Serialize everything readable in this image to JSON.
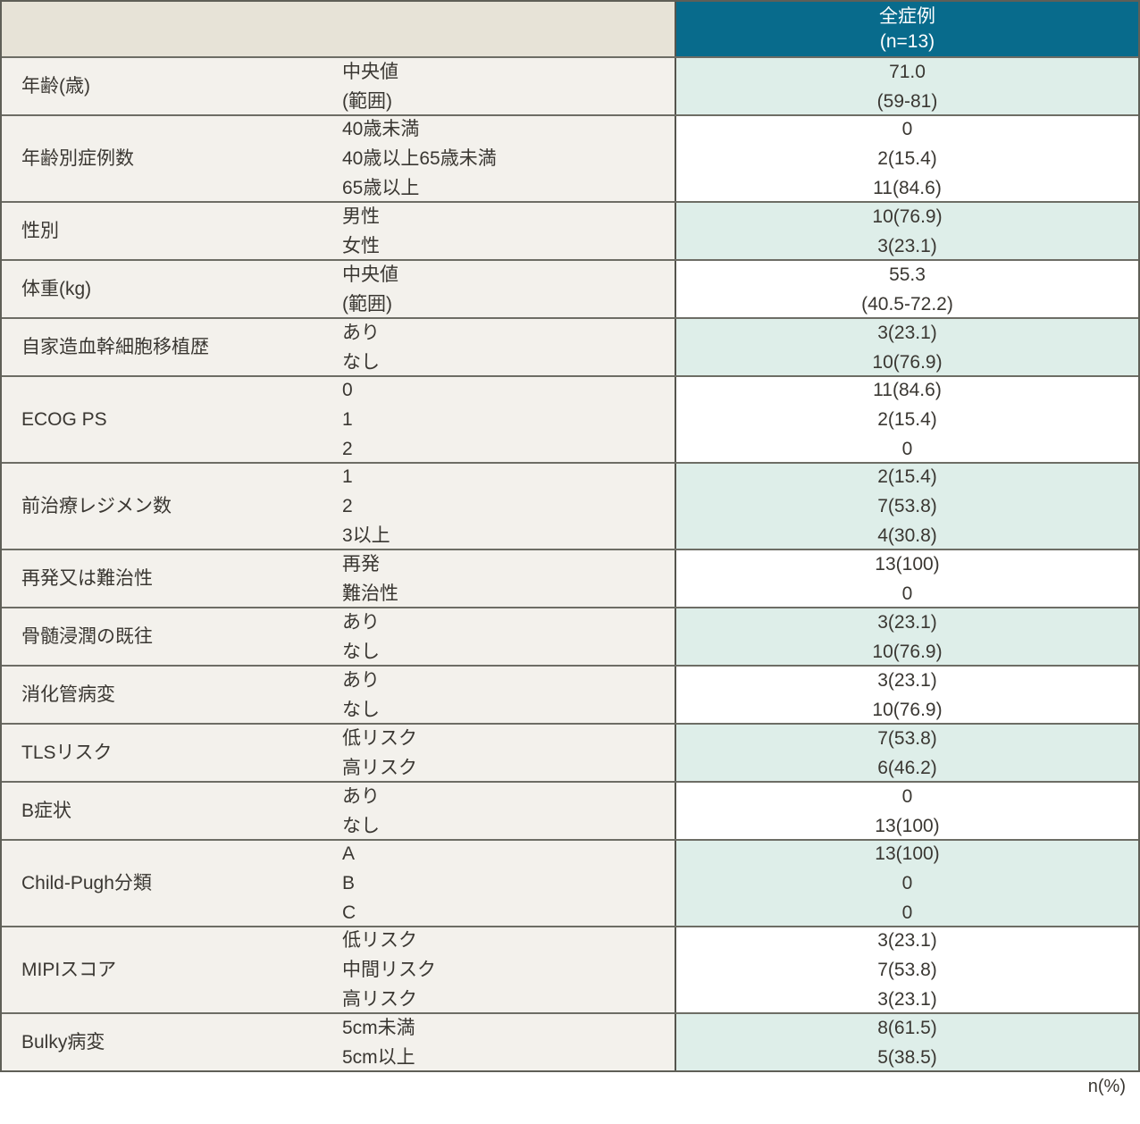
{
  "colors": {
    "header_bg": "#086b8c",
    "header_text": "#ffffff",
    "row_tint_bg": "#deeee9",
    "label_area_bg": "#f3f1ec",
    "header_label_bg": "#e7e3d7"
  },
  "table": {
    "header": {
      "line1": "全症例",
      "line2": "(n=13)"
    },
    "footnote": "n(%)",
    "rows": [
      {
        "category": "年齢(歳)",
        "items": [
          {
            "label": "中央値",
            "value": "71.0"
          },
          {
            "label": "(範囲)",
            "value": "(59-81)"
          }
        ]
      },
      {
        "category": "年齢別症例数",
        "items": [
          {
            "label": "40歳未満",
            "value": "0"
          },
          {
            "label": "40歳以上65歳未満",
            "value": "2(15.4)"
          },
          {
            "label": "65歳以上",
            "value": "11(84.6)"
          }
        ]
      },
      {
        "category": "性別",
        "items": [
          {
            "label": "男性",
            "value": "10(76.9)"
          },
          {
            "label": "女性",
            "value": "3(23.1)"
          }
        ]
      },
      {
        "category": "体重(kg)",
        "items": [
          {
            "label": "中央値",
            "value": "55.3"
          },
          {
            "label": "(範囲)",
            "value": "(40.5-72.2)"
          }
        ]
      },
      {
        "category": "自家造血幹細胞移植歴",
        "items": [
          {
            "label": "あり",
            "value": "3(23.1)"
          },
          {
            "label": "なし",
            "value": "10(76.9)"
          }
        ]
      },
      {
        "category": "ECOG PS",
        "items": [
          {
            "label": "0",
            "value": "11(84.6)"
          },
          {
            "label": "1",
            "value": "2(15.4)"
          },
          {
            "label": "2",
            "value": "0"
          }
        ]
      },
      {
        "category": "前治療レジメン数",
        "items": [
          {
            "label": "1",
            "value": "2(15.4)"
          },
          {
            "label": "2",
            "value": "7(53.8)"
          },
          {
            "label": "3以上",
            "value": "4(30.8)"
          }
        ]
      },
      {
        "category": "再発又は難治性",
        "items": [
          {
            "label": "再発",
            "value": "13(100)"
          },
          {
            "label": "難治性",
            "value": "0"
          }
        ]
      },
      {
        "category": "骨髄浸潤の既往",
        "items": [
          {
            "label": "あり",
            "value": "3(23.1)"
          },
          {
            "label": "なし",
            "value": "10(76.9)"
          }
        ]
      },
      {
        "category": "消化管病変",
        "items": [
          {
            "label": "あり",
            "value": "3(23.1)"
          },
          {
            "label": "なし",
            "value": "10(76.9)"
          }
        ]
      },
      {
        "category": "TLSリスク",
        "items": [
          {
            "label": "低リスク",
            "value": "7(53.8)"
          },
          {
            "label": "高リスク",
            "value": "6(46.2)"
          }
        ]
      },
      {
        "category": "B症状",
        "items": [
          {
            "label": "あり",
            "value": "0"
          },
          {
            "label": "なし",
            "value": "13(100)"
          }
        ]
      },
      {
        "category": "Child-Pugh分類",
        "items": [
          {
            "label": "A",
            "value": "13(100)"
          },
          {
            "label": "B",
            "value": "0"
          },
          {
            "label": "C",
            "value": "0"
          }
        ]
      },
      {
        "category": "MIPIスコア",
        "items": [
          {
            "label": "低リスク",
            "value": "3(23.1)"
          },
          {
            "label": "中間リスク",
            "value": "7(53.8)"
          },
          {
            "label": "高リスク",
            "value": "3(23.1)"
          }
        ]
      },
      {
        "category": "Bulky病変",
        "items": [
          {
            "label": "5cm未満",
            "value": "8(61.5)"
          },
          {
            "label": "5cm以上",
            "value": "5(38.5)"
          }
        ]
      }
    ]
  }
}
